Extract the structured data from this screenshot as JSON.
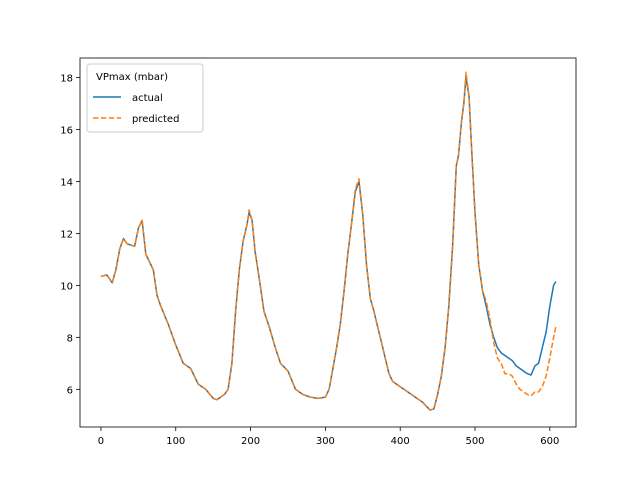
{
  "chart_data": {
    "type": "line",
    "title": "",
    "xlabel": "",
    "ylabel": "",
    "xlim": [
      -28,
      635
    ],
    "ylim": [
      4.55,
      18.75
    ],
    "xticks": [
      0,
      100,
      200,
      300,
      400,
      500,
      600
    ],
    "yticks": [
      6,
      8,
      10,
      12,
      14,
      16,
      18
    ],
    "grid": false,
    "legend": {
      "title": "VPmax (mbar)",
      "placement": "top-left",
      "entries": [
        "actual",
        "predicted"
      ]
    },
    "colors": {
      "actual": "#1f77b4",
      "predicted": "#ff7f0e",
      "axes": "#000000",
      "legend_border": "#cccccc"
    },
    "series": [
      {
        "name": "actual",
        "style": "solid",
        "points": [
          [
            0,
            10.35
          ],
          [
            8,
            10.4
          ],
          [
            15,
            10.1
          ],
          [
            20,
            10.6
          ],
          [
            25,
            11.4
          ],
          [
            30,
            11.8
          ],
          [
            35,
            11.6
          ],
          [
            40,
            11.55
          ],
          [
            45,
            11.5
          ],
          [
            50,
            12.2
          ],
          [
            55,
            12.5
          ],
          [
            60,
            11.2
          ],
          [
            65,
            10.9
          ],
          [
            70,
            10.6
          ],
          [
            75,
            9.6
          ],
          [
            80,
            9.2
          ],
          [
            90,
            8.5
          ],
          [
            100,
            7.7
          ],
          [
            110,
            7.0
          ],
          [
            120,
            6.8
          ],
          [
            130,
            6.2
          ],
          [
            140,
            6.0
          ],
          [
            150,
            5.65
          ],
          [
            155,
            5.6
          ],
          [
            165,
            5.8
          ],
          [
            170,
            6.0
          ],
          [
            175,
            7.0
          ],
          [
            180,
            9.0
          ],
          [
            185,
            10.6
          ],
          [
            190,
            11.7
          ],
          [
            195,
            12.3
          ],
          [
            198,
            12.8
          ],
          [
            202,
            12.5
          ],
          [
            206,
            11.3
          ],
          [
            212,
            10.2
          ],
          [
            218,
            9.0
          ],
          [
            225,
            8.4
          ],
          [
            232,
            7.7
          ],
          [
            240,
            7.0
          ],
          [
            250,
            6.7
          ],
          [
            260,
            6.0
          ],
          [
            270,
            5.8
          ],
          [
            280,
            5.7
          ],
          [
            290,
            5.65
          ],
          [
            300,
            5.7
          ],
          [
            305,
            6.0
          ],
          [
            310,
            6.8
          ],
          [
            315,
            7.6
          ],
          [
            320,
            8.5
          ],
          [
            325,
            9.8
          ],
          [
            330,
            11.2
          ],
          [
            335,
            12.4
          ],
          [
            340,
            13.6
          ],
          [
            345,
            14.0
          ],
          [
            350,
            12.7
          ],
          [
            355,
            10.8
          ],
          [
            360,
            9.5
          ],
          [
            365,
            9.0
          ],
          [
            370,
            8.4
          ],
          [
            375,
            7.8
          ],
          [
            380,
            7.2
          ],
          [
            385,
            6.6
          ],
          [
            390,
            6.3
          ],
          [
            400,
            6.1
          ],
          [
            410,
            5.9
          ],
          [
            420,
            5.7
          ],
          [
            430,
            5.5
          ],
          [
            440,
            5.2
          ],
          [
            445,
            5.25
          ],
          [
            450,
            5.8
          ],
          [
            455,
            6.5
          ],
          [
            460,
            7.6
          ],
          [
            465,
            9.2
          ],
          [
            470,
            11.5
          ],
          [
            475,
            14.6
          ],
          [
            478,
            15.0
          ],
          [
            482,
            16.3
          ],
          [
            485,
            17.0
          ],
          [
            488,
            18.0
          ],
          [
            492,
            17.3
          ],
          [
            495,
            15.5
          ],
          [
            500,
            12.8
          ],
          [
            505,
            10.8
          ],
          [
            510,
            9.8
          ],
          [
            515,
            9.2
          ],
          [
            520,
            8.5
          ],
          [
            525,
            8.0
          ],
          [
            530,
            7.6
          ],
          [
            535,
            7.4
          ],
          [
            540,
            7.3
          ],
          [
            545,
            7.2
          ],
          [
            550,
            7.1
          ],
          [
            555,
            6.9
          ],
          [
            560,
            6.8
          ],
          [
            565,
            6.7
          ],
          [
            570,
            6.6
          ],
          [
            575,
            6.55
          ],
          [
            580,
            6.9
          ],
          [
            585,
            7.0
          ],
          [
            590,
            7.6
          ],
          [
            595,
            8.2
          ],
          [
            600,
            9.2
          ],
          [
            605,
            10.0
          ],
          [
            608,
            10.15
          ]
        ]
      },
      {
        "name": "predicted",
        "style": "dashed",
        "points": [
          [
            0,
            10.35
          ],
          [
            8,
            10.4
          ],
          [
            15,
            10.1
          ],
          [
            20,
            10.6
          ],
          [
            25,
            11.4
          ],
          [
            30,
            11.8
          ],
          [
            35,
            11.6
          ],
          [
            40,
            11.55
          ],
          [
            45,
            11.5
          ],
          [
            50,
            12.2
          ],
          [
            55,
            12.5
          ],
          [
            60,
            11.2
          ],
          [
            65,
            10.9
          ],
          [
            70,
            10.6
          ],
          [
            75,
            9.6
          ],
          [
            80,
            9.2
          ],
          [
            90,
            8.5
          ],
          [
            100,
            7.7
          ],
          [
            110,
            7.0
          ],
          [
            120,
            6.8
          ],
          [
            130,
            6.2
          ],
          [
            140,
            6.0
          ],
          [
            150,
            5.65
          ],
          [
            155,
            5.6
          ],
          [
            165,
            5.8
          ],
          [
            170,
            6.0
          ],
          [
            175,
            7.0
          ],
          [
            180,
            9.0
          ],
          [
            185,
            10.6
          ],
          [
            190,
            11.7
          ],
          [
            195,
            12.3
          ],
          [
            198,
            12.9
          ],
          [
            202,
            12.5
          ],
          [
            206,
            11.3
          ],
          [
            212,
            10.2
          ],
          [
            218,
            9.0
          ],
          [
            225,
            8.4
          ],
          [
            232,
            7.7
          ],
          [
            240,
            7.0
          ],
          [
            250,
            6.7
          ],
          [
            260,
            6.0
          ],
          [
            270,
            5.8
          ],
          [
            280,
            5.7
          ],
          [
            290,
            5.65
          ],
          [
            300,
            5.7
          ],
          [
            305,
            6.0
          ],
          [
            310,
            6.8
          ],
          [
            315,
            7.6
          ],
          [
            320,
            8.5
          ],
          [
            325,
            9.8
          ],
          [
            330,
            11.2
          ],
          [
            335,
            12.4
          ],
          [
            340,
            13.7
          ],
          [
            345,
            14.1
          ],
          [
            350,
            12.7
          ],
          [
            355,
            10.8
          ],
          [
            360,
            9.5
          ],
          [
            365,
            9.0
          ],
          [
            370,
            8.4
          ],
          [
            375,
            7.8
          ],
          [
            380,
            7.2
          ],
          [
            385,
            6.6
          ],
          [
            390,
            6.3
          ],
          [
            400,
            6.1
          ],
          [
            410,
            5.9
          ],
          [
            420,
            5.7
          ],
          [
            430,
            5.5
          ],
          [
            440,
            5.2
          ],
          [
            445,
            5.25
          ],
          [
            450,
            5.8
          ],
          [
            455,
            6.5
          ],
          [
            460,
            7.6
          ],
          [
            465,
            9.2
          ],
          [
            470,
            11.5
          ],
          [
            475,
            14.6
          ],
          [
            478,
            15.0
          ],
          [
            482,
            16.3
          ],
          [
            485,
            17.0
          ],
          [
            488,
            18.2
          ],
          [
            492,
            17.3
          ],
          [
            495,
            15.5
          ],
          [
            500,
            12.8
          ],
          [
            505,
            10.8
          ],
          [
            510,
            9.8
          ],
          [
            515,
            9.4
          ],
          [
            520,
            8.7
          ],
          [
            525,
            7.8
          ],
          [
            530,
            7.2
          ],
          [
            535,
            7.0
          ],
          [
            540,
            6.6
          ],
          [
            545,
            6.6
          ],
          [
            550,
            6.5
          ],
          [
            555,
            6.2
          ],
          [
            560,
            6.0
          ],
          [
            565,
            5.9
          ],
          [
            570,
            5.8
          ],
          [
            575,
            5.75
          ],
          [
            580,
            5.9
          ],
          [
            585,
            5.9
          ],
          [
            590,
            6.1
          ],
          [
            595,
            6.5
          ],
          [
            600,
            7.2
          ],
          [
            605,
            8.0
          ],
          [
            608,
            8.4
          ]
        ]
      }
    ]
  }
}
